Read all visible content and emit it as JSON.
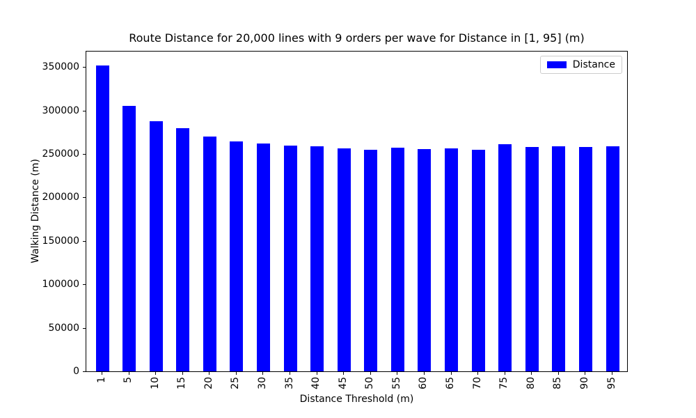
{
  "chart_data": {
    "type": "bar",
    "title": "Route Distance for 20,000 lines with 9 orders per wave for Distance in [1, 95] (m)",
    "xlabel": "Distance Threshold (m)",
    "ylabel": "Walking Distance (m)",
    "categories": [
      "1",
      "5",
      "10",
      "15",
      "20",
      "25",
      "30",
      "35",
      "40",
      "45",
      "50",
      "55",
      "60",
      "65",
      "70",
      "75",
      "80",
      "85",
      "90",
      "95"
    ],
    "values": [
      352000,
      305500,
      288000,
      279500,
      270000,
      264500,
      262000,
      260000,
      259000,
      256500,
      255000,
      257000,
      256000,
      256500,
      255000,
      261000,
      258000,
      259000,
      258000,
      259000
    ],
    "series_name": "Distance",
    "legend": {
      "label": "Distance",
      "position": "upper right"
    },
    "yticks": [
      0,
      50000,
      100000,
      150000,
      200000,
      250000,
      300000,
      350000
    ],
    "ylim": [
      0,
      369500
    ],
    "x_tick_rotation": 90,
    "grid": false,
    "colors": {
      "bar": "#0000ff",
      "text": "#000000",
      "background": "#ffffff",
      "legend_border": "#cccccc"
    }
  }
}
